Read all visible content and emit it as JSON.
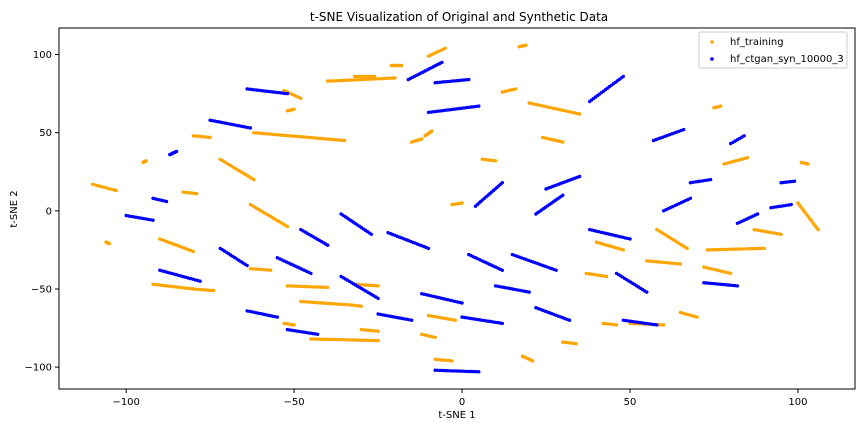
{
  "chart_data": {
    "type": "scatter",
    "title": "t-SNE Visualization of Original and Synthetic Data",
    "xlabel": "t-SNE 1",
    "ylabel": "t-SNE 2",
    "xlim": [
      -120,
      117
    ],
    "ylim": [
      -114,
      117
    ],
    "xticks": [
      -100,
      -50,
      0,
      50,
      100
    ],
    "yticks": [
      -100,
      -50,
      0,
      50,
      100
    ],
    "grid": false,
    "legend_position": "upper right",
    "series": [
      {
        "name": "hf_training",
        "color": "#FFA500",
        "marker": "dot",
        "clusters": [
          {
            "x": [
              -110,
              -103
            ],
            "y": [
              17,
              13
            ]
          },
          {
            "x": [
              -106,
              -105
            ],
            "y": [
              -20,
              -21
            ]
          },
          {
            "x": [
              -95,
              -94
            ],
            "y": [
              31,
              32
            ]
          },
          {
            "x": [
              -80,
              -75
            ],
            "y": [
              48,
              47
            ]
          },
          {
            "x": [
              -83,
              -79
            ],
            "y": [
              12,
              11
            ]
          },
          {
            "x": [
              -80,
              -74
            ],
            "y": [
              -50,
              -51
            ]
          },
          {
            "x": [
              -92,
              -80
            ],
            "y": [
              -47,
              -50
            ]
          },
          {
            "x": [
              -90,
              -80
            ],
            "y": [
              -18,
              -26
            ]
          },
          {
            "x": [
              -72,
              -62
            ],
            "y": [
              33,
              20
            ]
          },
          {
            "x": [
              -63,
              -57
            ],
            "y": [
              -37,
              -38
            ]
          },
          {
            "x": [
              -63,
              -52
            ],
            "y": [
              4,
              -10
            ]
          },
          {
            "x": [
              -53,
              -48
            ],
            "y": [
              77,
              72
            ]
          },
          {
            "x": [
              -52,
              -50
            ],
            "y": [
              64,
              65
            ]
          },
          {
            "x": [
              -62,
              -35
            ],
            "y": [
              50,
              45
            ]
          },
          {
            "x": [
              -53,
              -50
            ],
            "y": [
              -72,
              -73
            ]
          },
          {
            "x": [
              -52,
              -40
            ],
            "y": [
              -48,
              -49
            ]
          },
          {
            "x": [
              -48,
              -35
            ],
            "y": [
              -58,
              -60
            ]
          },
          {
            "x": [
              -45,
              -25
            ],
            "y": [
              -82,
              -83
            ]
          },
          {
            "x": [
              -40,
              -20
            ],
            "y": [
              83,
              85
            ]
          },
          {
            "x": [
              -32,
              -26
            ],
            "y": [
              86,
              86
            ]
          },
          {
            "x": [
              -34,
              -30
            ],
            "y": [
              -60,
              -61
            ]
          },
          {
            "x": [
              -30,
              -25
            ],
            "y": [
              -76,
              -77
            ]
          },
          {
            "x": [
              -32,
              -25
            ],
            "y": [
              -47,
              -48
            ]
          },
          {
            "x": [
              -21,
              -18
            ],
            "y": [
              93,
              93
            ]
          },
          {
            "x": [
              -15,
              -12
            ],
            "y": [
              44,
              46
            ]
          },
          {
            "x": [
              -10,
              -5
            ],
            "y": [
              99,
              104
            ]
          },
          {
            "x": [
              -8,
              -3
            ],
            "y": [
              -95,
              -96
            ]
          },
          {
            "x": [
              -12,
              -8
            ],
            "y": [
              -79,
              -81
            ]
          },
          {
            "x": [
              -11,
              -9
            ],
            "y": [
              48,
              51
            ]
          },
          {
            "x": [
              -10,
              -2
            ],
            "y": [
              -67,
              -70
            ]
          },
          {
            "x": [
              -3,
              0
            ],
            "y": [
              4,
              5
            ]
          },
          {
            "x": [
              6,
              10
            ],
            "y": [
              33,
              32
            ]
          },
          {
            "x": [
              12,
              16
            ],
            "y": [
              76,
              78
            ]
          },
          {
            "x": [
              17,
              19
            ],
            "y": [
              105,
              106
            ]
          },
          {
            "x": [
              18,
              21
            ],
            "y": [
              -93,
              -96
            ]
          },
          {
            "x": [
              20,
              35
            ],
            "y": [
              69,
              62
            ]
          },
          {
            "x": [
              24,
              30
            ],
            "y": [
              47,
              44
            ]
          },
          {
            "x": [
              30,
              34
            ],
            "y": [
              -84,
              -85
            ]
          },
          {
            "x": [
              37,
              43
            ],
            "y": [
              -40,
              -42
            ]
          },
          {
            "x": [
              40,
              48
            ],
            "y": [
              -20,
              -25
            ]
          },
          {
            "x": [
              42,
              46
            ],
            "y": [
              -72,
              -73
            ]
          },
          {
            "x": [
              50,
              60
            ],
            "y": [
              -72,
              -73
            ]
          },
          {
            "x": [
              55,
              65
            ],
            "y": [
              -32,
              -34
            ]
          },
          {
            "x": [
              58,
              67
            ],
            "y": [
              -12,
              -24
            ]
          },
          {
            "x": [
              65,
              70
            ],
            "y": [
              -65,
              -68
            ]
          },
          {
            "x": [
              75,
              77
            ],
            "y": [
              66,
              67
            ]
          },
          {
            "x": [
              72,
              80
            ],
            "y": [
              -36,
              -40
            ]
          },
          {
            "x": [
              78,
              85
            ],
            "y": [
              30,
              34
            ]
          },
          {
            "x": [
              73,
              90
            ],
            "y": [
              -25,
              -24
            ]
          },
          {
            "x": [
              87,
              95
            ],
            "y": [
              -12,
              -15
            ]
          },
          {
            "x": [
              100,
              106
            ],
            "y": [
              5,
              -12
            ]
          },
          {
            "x": [
              101,
              103
            ],
            "y": [
              31,
              30
            ]
          }
        ]
      },
      {
        "name": "hf_ctgan_syn_10000_3",
        "color": "#0000FF",
        "marker": "dot",
        "clusters": [
          {
            "x": [
              -100,
              -92
            ],
            "y": [
              -3,
              -6
            ]
          },
          {
            "x": [
              -92,
              -88
            ],
            "y": [
              8,
              6
            ]
          },
          {
            "x": [
              -90,
              -78
            ],
            "y": [
              -38,
              -45
            ]
          },
          {
            "x": [
              -87,
              -85
            ],
            "y": [
              36,
              38
            ]
          },
          {
            "x": [
              -75,
              -63
            ],
            "y": [
              58,
              53
            ]
          },
          {
            "x": [
              -72,
              -64
            ],
            "y": [
              -24,
              -35
            ]
          },
          {
            "x": [
              -64,
              -52
            ],
            "y": [
              78,
              75
            ]
          },
          {
            "x": [
              -64,
              -55
            ],
            "y": [
              -64,
              -68
            ]
          },
          {
            "x": [
              -55,
              -45
            ],
            "y": [
              -30,
              -40
            ]
          },
          {
            "x": [
              -52,
              -43
            ],
            "y": [
              -76,
              -79
            ]
          },
          {
            "x": [
              -48,
              -40
            ],
            "y": [
              -12,
              -22
            ]
          },
          {
            "x": [
              -36,
              -25
            ],
            "y": [
              -42,
              -56
            ]
          },
          {
            "x": [
              -36,
              -27
            ],
            "y": [
              -2,
              -15
            ]
          },
          {
            "x": [
              -25,
              -15
            ],
            "y": [
              -66,
              -70
            ]
          },
          {
            "x": [
              -22,
              -10
            ],
            "y": [
              -14,
              -24
            ]
          },
          {
            "x": [
              -16,
              -6
            ],
            "y": [
              84,
              95
            ]
          },
          {
            "x": [
              -10,
              5
            ],
            "y": [
              63,
              67
            ]
          },
          {
            "x": [
              -8,
              2
            ],
            "y": [
              82,
              84
            ]
          },
          {
            "x": [
              -12,
              0
            ],
            "y": [
              -53,
              -59
            ]
          },
          {
            "x": [
              -8,
              5
            ],
            "y": [
              -102,
              -103
            ]
          },
          {
            "x": [
              0,
              12
            ],
            "y": [
              -68,
              -72
            ]
          },
          {
            "x": [
              2,
              12
            ],
            "y": [
              -28,
              -38
            ]
          },
          {
            "x": [
              4,
              12
            ],
            "y": [
              3,
              18
            ]
          },
          {
            "x": [
              10,
              20
            ],
            "y": [
              -48,
              -52
            ]
          },
          {
            "x": [
              15,
              28
            ],
            "y": [
              -28,
              -38
            ]
          },
          {
            "x": [
              22,
              30
            ],
            "y": [
              -2,
              10
            ]
          },
          {
            "x": [
              22,
              32
            ],
            "y": [
              -62,
              -70
            ]
          },
          {
            "x": [
              25,
              35
            ],
            "y": [
              14,
              22
            ]
          },
          {
            "x": [
              38,
              48
            ],
            "y": [
              70,
              86
            ]
          },
          {
            "x": [
              38,
              50
            ],
            "y": [
              -12,
              -18
            ]
          },
          {
            "x": [
              46,
              55
            ],
            "y": [
              -40,
              -52
            ]
          },
          {
            "x": [
              48,
              58
            ],
            "y": [
              -70,
              -73
            ]
          },
          {
            "x": [
              57,
              66
            ],
            "y": [
              45,
              52
            ]
          },
          {
            "x": [
              60,
              68
            ],
            "y": [
              0,
              8
            ]
          },
          {
            "x": [
              68,
              74
            ],
            "y": [
              18,
              20
            ]
          },
          {
            "x": [
              72,
              82
            ],
            "y": [
              -46,
              -48
            ]
          },
          {
            "x": [
              80,
              84
            ],
            "y": [
              43,
              48
            ]
          },
          {
            "x": [
              82,
              88
            ],
            "y": [
              -8,
              -2
            ]
          },
          {
            "x": [
              92,
              98
            ],
            "y": [
              2,
              4
            ]
          },
          {
            "x": [
              95,
              99
            ],
            "y": [
              18,
              19
            ]
          }
        ]
      }
    ]
  }
}
